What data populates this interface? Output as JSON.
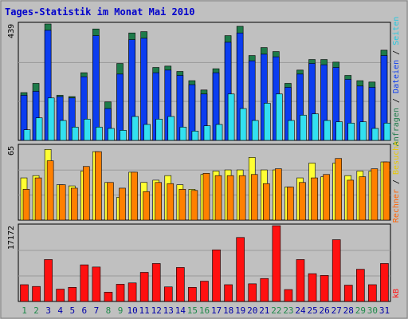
{
  "title": "Tages-Statistik im Monat Mai 2010",
  "colors": {
    "background": "#c0c0c0",
    "panel": "#c0c0c0",
    "title_text": "#0000cc",
    "anfragen": "#1e7b4a",
    "dateien": "#0b3df0",
    "seiten": "#33e0f0",
    "besuche": "#ffff33",
    "rechner": "#ff8000",
    "kb": "#ff1010",
    "weekend_day": "#1e8a4a",
    "weekday_day": "#0000aa"
  },
  "chart_data": [
    {
      "type": "bar",
      "panel": "top",
      "ymax_label": "439",
      "ylim": [
        0,
        439
      ],
      "legend_right": [
        "Anfragen",
        "Dateien",
        "Seiten"
      ],
      "categories": [
        "1",
        "2",
        "3",
        "4",
        "5",
        "6",
        "7",
        "8",
        "9",
        "10",
        "11",
        "12",
        "13",
        "14",
        "15",
        "16",
        "17",
        "18",
        "19",
        "20",
        "21",
        "22",
        "23",
        "24",
        "25",
        "26",
        "27",
        "28",
        "29",
        "30",
        "31"
      ],
      "series": [
        {
          "name": "Anfragen",
          "values": [
            180,
            215,
            439,
            170,
            165,
            255,
            420,
            145,
            290,
            405,
            410,
            275,
            280,
            260,
            225,
            190,
            270,
            395,
            430,
            320,
            350,
            335,
            215,
            265,
            305,
            305,
            295,
            245,
            225,
            220,
            340
          ]
        },
        {
          "name": "Dateien",
          "values": [
            170,
            185,
            415,
            165,
            160,
            240,
            395,
            120,
            250,
            380,
            385,
            255,
            265,
            245,
            210,
            175,
            255,
            370,
            405,
            300,
            325,
            315,
            200,
            250,
            290,
            285,
            275,
            230,
            205,
            200,
            320
          ]
        },
        {
          "name": "Seiten",
          "values": [
            40,
            85,
            160,
            75,
            50,
            80,
            50,
            45,
            38,
            90,
            60,
            80,
            90,
            50,
            35,
            55,
            60,
            175,
            120,
            75,
            140,
            175,
            75,
            95,
            100,
            75,
            70,
            65,
            70,
            45,
            65
          ]
        }
      ]
    },
    {
      "type": "bar",
      "panel": "middle",
      "ymax_label": "65",
      "ylim": [
        0,
        65
      ],
      "legend_right": [
        "Rechner",
        "Besuche"
      ],
      "categories": [
        "1",
        "2",
        "3",
        "4",
        "5",
        "6",
        "7",
        "8",
        "9",
        "10",
        "11",
        "12",
        "13",
        "14",
        "15",
        "16",
        "17",
        "18",
        "19",
        "20",
        "21",
        "22",
        "23",
        "24",
        "25",
        "26",
        "27",
        "28",
        "29",
        "30",
        "31"
      ],
      "series": [
        {
          "name": "Besuche",
          "values": [
            37,
            39,
            62,
            31,
            30,
            43,
            60,
            33,
            20,
            42,
            33,
            35,
            39,
            31,
            27,
            40,
            43,
            44,
            44,
            55,
            44,
            44,
            29,
            37,
            50,
            38,
            50,
            39,
            43,
            43,
            51
          ]
        },
        {
          "name": "Rechner",
          "values": [
            27,
            37,
            52,
            31,
            28,
            47,
            60,
            33,
            28,
            42,
            25,
            33,
            32,
            27,
            26,
            41,
            39,
            39,
            39,
            40,
            32,
            45,
            29,
            33,
            37,
            40,
            54,
            35,
            38,
            45,
            51
          ]
        }
      ]
    },
    {
      "type": "bar",
      "panel": "bottom",
      "ymax_label": "17172",
      "ylim": [
        0,
        17172
      ],
      "legend_right": [
        "kB"
      ],
      "categories": [
        "1",
        "2",
        "3",
        "4",
        "5",
        "6",
        "7",
        "8",
        "9",
        "10",
        "11",
        "12",
        "13",
        "14",
        "15",
        "16",
        "17",
        "18",
        "19",
        "20",
        "21",
        "22",
        "23",
        "24",
        "25",
        "26",
        "27",
        "28",
        "29",
        "30",
        "31"
      ],
      "series": [
        {
          "name": "kB",
          "values": [
            3800,
            3400,
            9500,
            2800,
            3200,
            8300,
            7800,
            2100,
            3900,
            4200,
            6600,
            8600,
            3300,
            7700,
            3200,
            4600,
            11700,
            3800,
            14500,
            4000,
            5200,
            17172,
            2700,
            9500,
            6300,
            5900,
            14000,
            3700,
            7300,
            3800,
            8600
          ]
        }
      ]
    }
  ],
  "x_day_labels": [
    {
      "label": "1",
      "weekend": true
    },
    {
      "label": "2",
      "weekend": true
    },
    {
      "label": "3",
      "weekend": false
    },
    {
      "label": "4",
      "weekend": false
    },
    {
      "label": "5",
      "weekend": false
    },
    {
      "label": "6",
      "weekend": false
    },
    {
      "label": "7",
      "weekend": false
    },
    {
      "label": "8",
      "weekend": true
    },
    {
      "label": "9",
      "weekend": true
    },
    {
      "label": "10",
      "weekend": false
    },
    {
      "label": "11",
      "weekend": false
    },
    {
      "label": "12",
      "weekend": false
    },
    {
      "label": "13",
      "weekend": false
    },
    {
      "label": "14",
      "weekend": false
    },
    {
      "label": "15",
      "weekend": true
    },
    {
      "label": "16",
      "weekend": true
    },
    {
      "label": "17",
      "weekend": false
    },
    {
      "label": "18",
      "weekend": false
    },
    {
      "label": "19",
      "weekend": false
    },
    {
      "label": "20",
      "weekend": false
    },
    {
      "label": "21",
      "weekend": false
    },
    {
      "label": "22",
      "weekend": true
    },
    {
      "label": "23",
      "weekend": true
    },
    {
      "label": "24",
      "weekend": false
    },
    {
      "label": "25",
      "weekend": false
    },
    {
      "label": "26",
      "weekend": false
    },
    {
      "label": "27",
      "weekend": false
    },
    {
      "label": "28",
      "weekend": false
    },
    {
      "label": "29",
      "weekend": true
    },
    {
      "label": "30",
      "weekend": true
    },
    {
      "label": "31",
      "weekend": false
    }
  ],
  "legend_labels": {
    "top_right": [
      {
        "text": "Anfragen",
        "color": "#1e7b4a"
      },
      {
        "text": " / ",
        "color": "#000000"
      },
      {
        "text": "Dateien",
        "color": "#0b3df0"
      },
      {
        "text": " / ",
        "color": "#000000"
      },
      {
        "text": "Seiten",
        "color": "#20c8e0"
      }
    ],
    "middle_right": [
      {
        "text": "Rechner",
        "color": "#ff6000"
      },
      {
        "text": " / ",
        "color": "#000000"
      },
      {
        "text": "Besuche",
        "color": "#e8c800"
      }
    ],
    "bottom_right": [
      {
        "text": "kB",
        "color": "#ff1010"
      }
    ]
  }
}
